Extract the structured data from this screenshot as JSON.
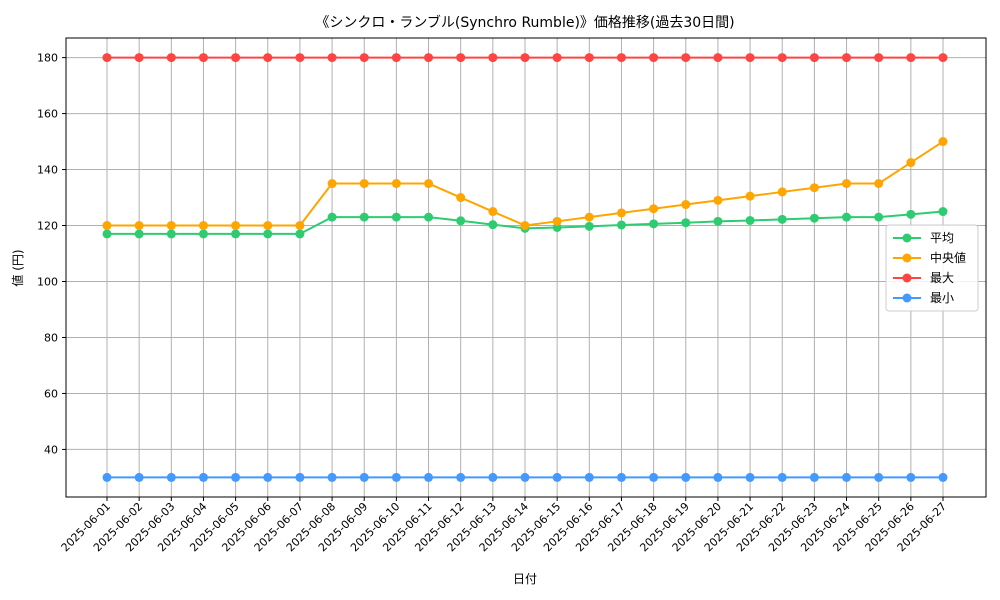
{
  "chart_data": {
    "type": "line",
    "title": "《シンクロ・ランブル(Synchro Rumble)》価格推移(過去30日間)",
    "xlabel": "日付",
    "ylabel": "値 (円)",
    "ylim": [
      23,
      187
    ],
    "yticks": [
      40,
      60,
      80,
      100,
      120,
      140,
      160,
      180
    ],
    "grid": true,
    "legend_position": "right",
    "categories": [
      "2025-06-01",
      "2025-06-02",
      "2025-06-03",
      "2025-06-04",
      "2025-06-05",
      "2025-06-06",
      "2025-06-07",
      "2025-06-08",
      "2025-06-09",
      "2025-06-10",
      "2025-06-11",
      "2025-06-12",
      "2025-06-13",
      "2025-06-14",
      "2025-06-15",
      "2025-06-16",
      "2025-06-17",
      "2025-06-18",
      "2025-06-19",
      "2025-06-20",
      "2025-06-21",
      "2025-06-22",
      "2025-06-23",
      "2025-06-24",
      "2025-06-25",
      "2025-06-26",
      "2025-06-27"
    ],
    "series": [
      {
        "name": "平均",
        "color": "#2ecc71",
        "values": [
          117,
          117,
          117,
          117,
          117,
          117,
          117,
          123,
          123,
          123,
          123,
          121.7,
          120.3,
          119,
          119.3,
          119.7,
          120.2,
          120.6,
          121,
          121.5,
          121.8,
          122.2,
          122.6,
          123,
          123,
          124,
          125
        ]
      },
      {
        "name": "中央値",
        "color": "#ffa500",
        "values": [
          120,
          120,
          120,
          120,
          120,
          120,
          120,
          135,
          135,
          135,
          135,
          130,
          125,
          120,
          121.5,
          123,
          124.5,
          126,
          127.5,
          129,
          130.5,
          132,
          133.5,
          135,
          135,
          142.5,
          150
        ]
      },
      {
        "name": "最大",
        "color": "#ff4444",
        "values": [
          180,
          180,
          180,
          180,
          180,
          180,
          180,
          180,
          180,
          180,
          180,
          180,
          180,
          180,
          180,
          180,
          180,
          180,
          180,
          180,
          180,
          180,
          180,
          180,
          180,
          180,
          180
        ]
      },
      {
        "name": "最小",
        "color": "#4499ff",
        "values": [
          30,
          30,
          30,
          30,
          30,
          30,
          30,
          30,
          30,
          30,
          30,
          30,
          30,
          30,
          30,
          30,
          30,
          30,
          30,
          30,
          30,
          30,
          30,
          30,
          30,
          30,
          30
        ]
      }
    ]
  }
}
